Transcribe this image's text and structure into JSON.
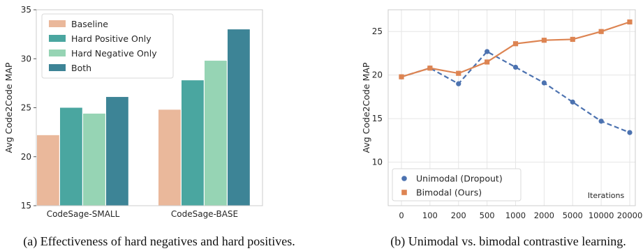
{
  "captions": {
    "left": "(a) Effectiveness of hard negatives and hard positives.",
    "right": "(b) Unimodal vs. bimodal contrastive learning."
  },
  "chart_data": [
    {
      "type": "bar",
      "categories": [
        "CodeSage-SMALL",
        "CodeSage-BASE"
      ],
      "series": [
        {
          "name": "Baseline",
          "values": [
            22.2,
            24.8
          ],
          "color": "#eab89b"
        },
        {
          "name": "Hard Positive Only",
          "values": [
            25.0,
            27.8
          ],
          "color": "#4aa6a0"
        },
        {
          "name": "Hard Negative Only",
          "values": [
            24.4,
            29.8
          ],
          "color": "#96d4b4"
        },
        {
          "name": "Both",
          "values": [
            26.1,
            33.0
          ],
          "color": "#3d8496"
        }
      ],
      "ylabel": "Avg Code2Code MAP",
      "xlabel": "",
      "ylim": [
        15,
        35
      ],
      "yticks": [
        15,
        20,
        25,
        30,
        35
      ],
      "legend": "top-left",
      "grid": false
    },
    {
      "type": "line",
      "x": [
        "0",
        "100",
        "200",
        "500",
        "1000",
        "2000",
        "5000",
        "10000",
        "20000"
      ],
      "series": [
        {
          "name": "Unimodal (Dropout)",
          "values": [
            19.8,
            20.8,
            19.0,
            22.7,
            20.9,
            19.1,
            16.9,
            14.7,
            13.4
          ],
          "color": "#4c72b0",
          "style": "dashed",
          "marker": "circle"
        },
        {
          "name": "Bimodal (Ours)",
          "values": [
            19.8,
            20.8,
            20.2,
            21.5,
            23.6,
            24.0,
            24.1,
            25.0,
            26.1
          ],
          "color": "#dd8452",
          "style": "solid",
          "marker": "square"
        }
      ],
      "ylabel": "Avg Code2Code MAP",
      "xlabel": "Iterations",
      "ylim": [
        5,
        27.5
      ],
      "yticks": [
        10,
        15,
        20,
        25
      ],
      "legend": "bottom-left",
      "grid": true
    }
  ]
}
